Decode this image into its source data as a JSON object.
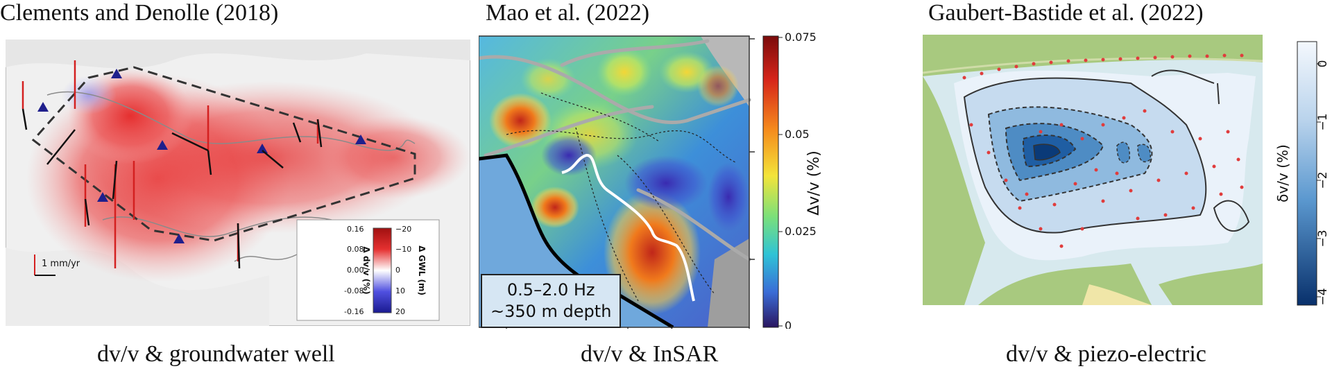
{
  "panels": [
    {
      "title": "Clements and Denolle (2018)",
      "caption": "dv/v & groundwater well",
      "scale_bar_label": "1 mm/yr",
      "colorbar": {
        "left_label": "Δ dv/v (%)",
        "right_label": "Δ GWL (m)",
        "left_ticks": [
          "0.16",
          "0.08",
          "0.00",
          "-0.08",
          "-0.16"
        ],
        "right_ticks": [
          "−20",
          "−10",
          "0",
          "10",
          "20"
        ]
      }
    },
    {
      "title": "Mao et al. (2022)",
      "caption": "dv/v & InSAR",
      "info_line1": "0.5–2.0 Hz",
      "info_line2": "~350 m depth",
      "colorbar": {
        "label": "Δv/v (%)",
        "ticks": [
          "0.075",
          "0.05",
          "0.025",
          "0"
        ]
      }
    },
    {
      "title": "Gaubert-Bastide et al. (2022)",
      "caption": "dv/v & piezo-electric",
      "colorbar": {
        "label": "δv/v (%)",
        "ticks": [
          "0",
          "−1",
          "−2",
          "−3",
          "−4"
        ]
      }
    }
  ],
  "colors": {
    "red_anomaly": "#e52a2a",
    "land_sea_blue": "#6fa8dc",
    "well_marker": "#1f1f8c",
    "sensor_dot": "#e03c3c",
    "park_green": "#a8c97f"
  }
}
